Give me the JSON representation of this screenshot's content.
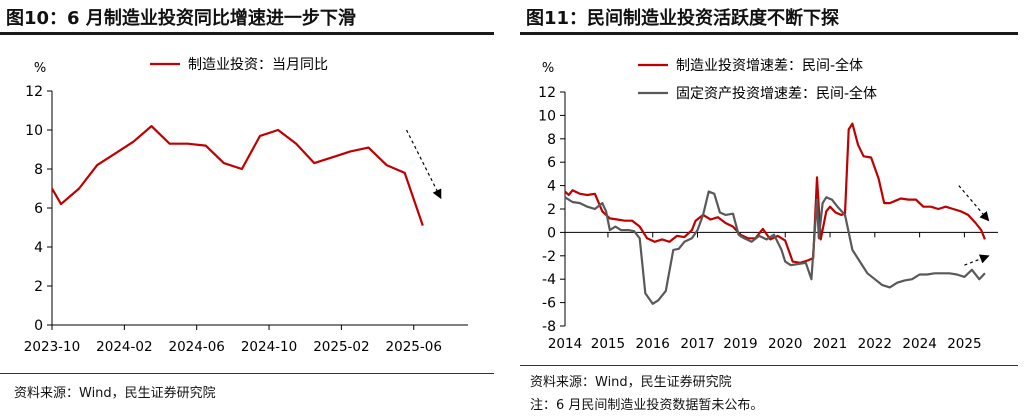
{
  "left": {
    "title": "图10：6 月制造业投资同比增速进一步下滑",
    "source": "资料来源：Wind，民生证券研究院",
    "chart_data": {
      "type": "line",
      "unit_label": "%",
      "ylim": [
        0,
        12
      ],
      "yticks": [
        0,
        2,
        4,
        6,
        8,
        10,
        12
      ],
      "xlim": [
        0,
        23
      ],
      "xtick_labels": [
        "2023-10",
        "2024-02",
        "2024-06",
        "2024-10",
        "2025-02",
        "2025-06"
      ],
      "xtick_positions": [
        0,
        4,
        8,
        12,
        16,
        20
      ],
      "series": [
        {
          "name": "制造业投资：当月同比",
          "color": "#c00000",
          "x": [
            0,
            0.5,
            1.5,
            2.5,
            3.5,
            4.5,
            5.5,
            6.5,
            7.5,
            8.5,
            9.5,
            10.5,
            11.5,
            12.5,
            13.5,
            14.5,
            15.5,
            16.5,
            17.5,
            18.5,
            19.5,
            20.5
          ],
          "values": [
            7.0,
            6.2,
            7.0,
            8.2,
            8.8,
            9.4,
            10.2,
            9.3,
            9.3,
            9.2,
            8.3,
            8.0,
            9.7,
            10.0,
            9.3,
            8.3,
            8.6,
            8.9,
            9.1,
            8.2,
            7.8,
            5.1
          ]
        }
      ],
      "arrows": [
        {
          "from": [
            19.6,
            10.0
          ],
          "to": [
            21.5,
            6.5
          ],
          "style": "dashed"
        }
      ]
    }
  },
  "right": {
    "title": "图11：民间制造业投资活跃度不断下探",
    "source": "资料来源：Wind，民生证券研究院",
    "note": "注：6 月民间制造业投资数据暂未公布。",
    "chart_data": {
      "type": "line",
      "unit_label": "%",
      "ylim": [
        -8,
        12
      ],
      "yticks": [
        -8,
        -6,
        -4,
        -2,
        0,
        2,
        4,
        6,
        8,
        10,
        12
      ],
      "xlim": [
        2014,
        2025.6
      ],
      "xtick_labels": [
        "2014",
        "2015",
        "2016",
        "2017",
        "2019",
        "2020",
        "2021",
        "2022",
        "2024",
        "2025"
      ],
      "xtick_positions": [
        2014,
        2015.15,
        2016.35,
        2017.55,
        2018.7,
        2019.9,
        2021.1,
        2022.3,
        2023.5,
        2024.7
      ],
      "series": [
        {
          "name": "制造业投资增速差：民间-全体",
          "color": "#c00000",
          "x": [
            2014.0,
            2014.1,
            2014.2,
            2014.4,
            2014.6,
            2014.8,
            2015.0,
            2015.2,
            2015.4,
            2015.6,
            2015.8,
            2016.0,
            2016.2,
            2016.4,
            2016.6,
            2016.8,
            2017.0,
            2017.2,
            2017.4,
            2017.5,
            2017.7,
            2017.9,
            2018.1,
            2018.3,
            2018.5,
            2018.7,
            2018.9,
            2019.1,
            2019.3,
            2019.5,
            2019.7,
            2019.9,
            2020.1,
            2020.3,
            2020.5,
            2020.65,
            2020.75,
            2020.85,
            2021.0,
            2021.1,
            2021.25,
            2021.4,
            2021.5,
            2021.6,
            2021.7,
            2021.85,
            2022.0,
            2022.2,
            2022.4,
            2022.55,
            2022.7,
            2022.85,
            2023.0,
            2023.2,
            2023.4,
            2023.6,
            2023.8,
            2024.0,
            2024.2,
            2024.4,
            2024.6,
            2024.8,
            2025.0,
            2025.15,
            2025.25
          ],
          "values": [
            3.5,
            3.2,
            3.6,
            3.3,
            3.2,
            3.3,
            1.8,
            1.2,
            1.1,
            1.0,
            1.0,
            0.5,
            -0.5,
            -0.8,
            -0.6,
            -0.8,
            -0.3,
            -0.4,
            0.2,
            1.0,
            1.5,
            1.1,
            1.3,
            0.8,
            0.5,
            -0.2,
            -0.5,
            -0.5,
            0.3,
            -0.6,
            -0.3,
            -0.7,
            -2.5,
            -2.6,
            -2.4,
            -2.2,
            4.7,
            -0.6,
            1.8,
            2.2,
            1.7,
            1.5,
            1.6,
            8.8,
            9.3,
            7.5,
            6.5,
            6.4,
            4.6,
            2.5,
            2.5,
            2.7,
            2.9,
            2.8,
            2.8,
            2.2,
            2.2,
            2.0,
            2.2,
            2.0,
            1.8,
            1.5,
            0.8,
            0.2,
            -0.6
          ]
        },
        {
          "name": "固定资产投资增速差：民间-全体",
          "color": "#595959",
          "x": [
            2014.0,
            2014.2,
            2014.4,
            2014.6,
            2014.8,
            2015.0,
            2015.1,
            2015.2,
            2015.35,
            2015.5,
            2015.7,
            2015.85,
            2016.0,
            2016.15,
            2016.35,
            2016.5,
            2016.7,
            2016.9,
            2017.05,
            2017.2,
            2017.4,
            2017.55,
            2017.7,
            2017.85,
            2018.0,
            2018.15,
            2018.3,
            2018.5,
            2018.65,
            2018.8,
            2019.0,
            2019.2,
            2019.4,
            2019.6,
            2019.8,
            2019.9,
            2020.05,
            2020.25,
            2020.45,
            2020.6,
            2020.75,
            2020.8,
            2020.9,
            2021.0,
            2021.15,
            2021.3,
            2021.5,
            2021.7,
            2021.9,
            2022.1,
            2022.3,
            2022.5,
            2022.7,
            2022.9,
            2023.1,
            2023.3,
            2023.5,
            2023.7,
            2023.9,
            2024.1,
            2024.3,
            2024.5,
            2024.7,
            2024.9,
            2025.1,
            2025.25
          ],
          "values": [
            3.0,
            2.6,
            2.5,
            2.2,
            2.0,
            2.5,
            1.8,
            0.2,
            0.5,
            0.2,
            0.2,
            0.1,
            -0.5,
            -5.2,
            -6.1,
            -5.8,
            -5.0,
            -1.5,
            -1.4,
            -0.8,
            -0.5,
            0.2,
            1.5,
            3.5,
            3.3,
            1.7,
            1.5,
            1.6,
            -0.2,
            -0.5,
            -0.8,
            -0.3,
            -0.6,
            -0.2,
            -1.5,
            -2.5,
            -2.8,
            -2.7,
            -2.6,
            -4.0,
            2.8,
            -0.5,
            2.5,
            3.0,
            2.8,
            2.2,
            1.5,
            -1.5,
            -2.5,
            -3.5,
            -4.0,
            -4.5,
            -4.7,
            -4.3,
            -4.1,
            -4.0,
            -3.6,
            -3.6,
            -3.5,
            -3.5,
            -3.5,
            -3.6,
            -3.8,
            -3.2,
            -4.0,
            -3.5
          ]
        }
      ],
      "arrows": [
        {
          "from": [
            2024.55,
            4.0
          ],
          "to": [
            2025.35,
            1.0
          ],
          "style": "dashed"
        },
        {
          "from": [
            2024.7,
            -2.8
          ],
          "to": [
            2025.35,
            -2.0
          ],
          "style": "dashed"
        }
      ]
    }
  }
}
